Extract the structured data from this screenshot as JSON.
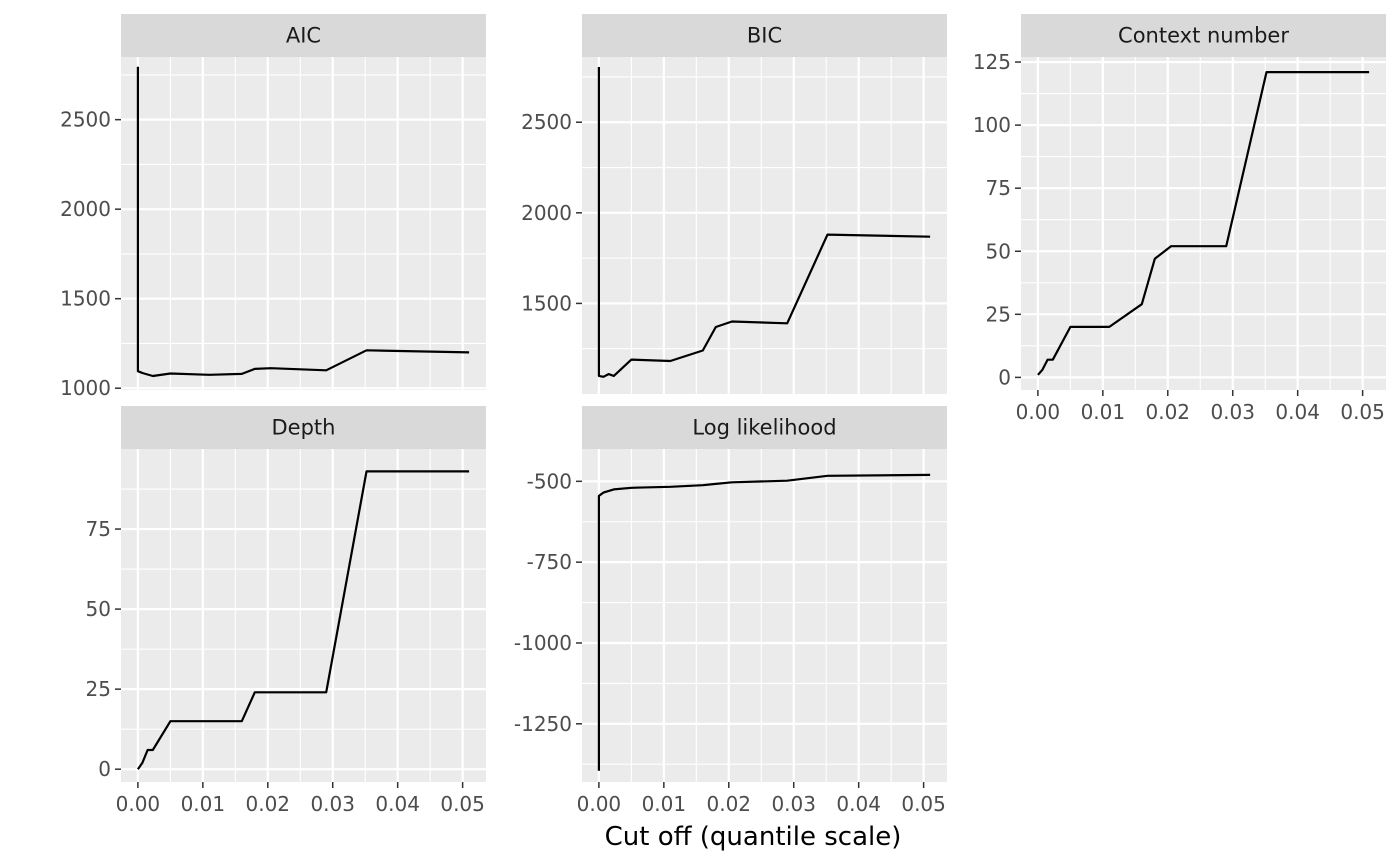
{
  "chart_data": {
    "type": "line",
    "layout": "facet_wrap",
    "ncol": 3,
    "line_color": "#000000",
    "xlabel": "Cut off (quantile scale)",
    "x_ticks": [
      0.0,
      0.01,
      0.02,
      0.03,
      0.04,
      0.05
    ],
    "x_tick_labels": [
      "0.00",
      "0.01",
      "0.02",
      "0.03",
      "0.04",
      "0.05"
    ],
    "x_range": [
      -0.0026,
      0.0536
    ],
    "axis_x": [
      0,
      0.0001,
      0.0007,
      0.0015,
      0.0023,
      0.005,
      0.011,
      0.016,
      0.018,
      0.0205,
      0.029,
      0.0352,
      0.051
    ],
    "panels": [
      {
        "strip": "AIC",
        "y_range": [
          990,
          2850
        ],
        "y_ticks": [
          1000,
          1500,
          2000,
          2500
        ],
        "y_tick_labels": [
          "1000",
          "1500",
          "2000",
          "2500"
        ],
        "x": [
          0,
          0,
          0.0007,
          0.0023,
          0.005,
          0.011,
          0.016,
          0.018,
          0.0205,
          0.029,
          0.0352,
          0.051
        ],
        "y": [
          2795,
          1095,
          1085,
          1068,
          1082,
          1075,
          1080,
          1108,
          1112,
          1100,
          1212,
          1200
        ]
      },
      {
        "strip": "BIC",
        "y_range": [
          1000,
          2860
        ],
        "y_ticks": [
          1500,
          2000,
          2500
        ],
        "y_tick_labels": [
          "1500",
          "2000",
          "2500"
        ],
        "x": [
          0,
          0,
          0.0007,
          0.0015,
          0.0023,
          0.005,
          0.011,
          0.016,
          0.018,
          0.0205,
          0.029,
          0.0352,
          0.051
        ],
        "y": [
          2805,
          1100,
          1095,
          1110,
          1100,
          1190,
          1182,
          1240,
          1370,
          1400,
          1390,
          1880,
          1868
        ]
      },
      {
        "strip": "Context number",
        "y_range": [
          -5,
          127
        ],
        "y_ticks": [
          0,
          25,
          50,
          75,
          100,
          125
        ],
        "y_tick_labels": [
          "0",
          "25",
          "50",
          "75",
          "100",
          "125"
        ],
        "x": [
          0,
          0.0007,
          0.0015,
          0.0023,
          0.005,
          0.011,
          0.016,
          0.018,
          0.0205,
          0.029,
          0.0352,
          0.051
        ],
        "y": [
          1,
          3,
          7,
          7,
          20,
          20,
          29,
          47,
          52,
          52,
          121,
          121
        ]
      },
      {
        "strip": "Depth",
        "y_range": [
          -4,
          100
        ],
        "y_ticks": [
          0,
          25,
          50,
          75
        ],
        "y_tick_labels": [
          "0",
          "25",
          "50",
          "75"
        ],
        "x": [
          0,
          0.0007,
          0.0015,
          0.0023,
          0.005,
          0.011,
          0.016,
          0.018,
          0.0205,
          0.029,
          0.0352,
          0.051
        ],
        "y": [
          0,
          2,
          6,
          6,
          15,
          15,
          15,
          24,
          24,
          24,
          93,
          93
        ]
      },
      {
        "strip": "Log likelihood",
        "y_range": [
          -1430,
          -400
        ],
        "y_ticks": [
          -1250,
          -1000,
          -750,
          -500
        ],
        "y_tick_labels": [
          "-1250",
          "-1000",
          "-750",
          "-500"
        ],
        "x": [
          0,
          0,
          0.0007,
          0.0023,
          0.005,
          0.011,
          0.016,
          0.018,
          0.0205,
          0.029,
          0.0352,
          0.051
        ],
        "y": [
          -1395,
          -545,
          -535,
          -525,
          -520,
          -517,
          -512,
          -508,
          -503,
          -498,
          -483,
          -480
        ]
      }
    ]
  }
}
